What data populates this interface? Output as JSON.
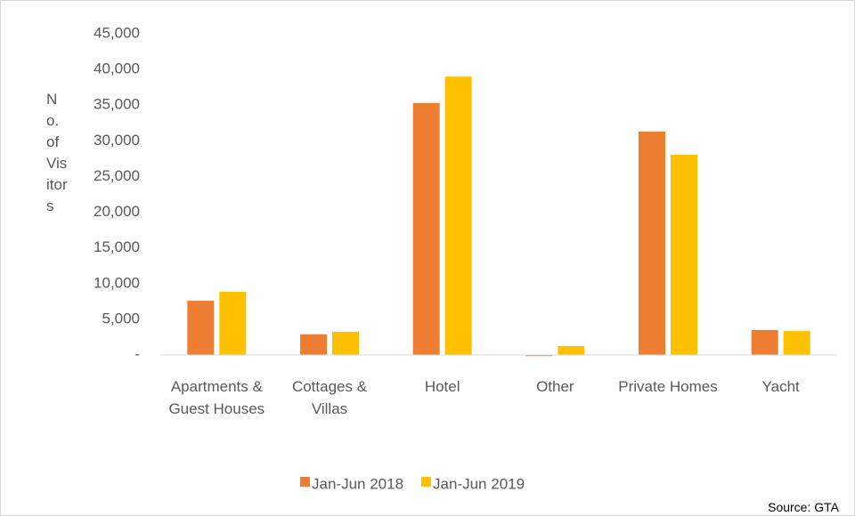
{
  "chart_data": {
    "type": "bar",
    "y_label": "No. of Visitors",
    "source": "Source: GTA",
    "categories": [
      "Apartments & Guest Houses",
      "Cottages & Villas",
      "Hotel",
      "Other",
      "Private Homes",
      "Yacht"
    ],
    "series": [
      {
        "name": "Jan-Jun 2018",
        "color": "#ed7d31",
        "values": [
          7600,
          2900,
          35300,
          -150,
          31300,
          3500
        ]
      },
      {
        "name": "Jan-Jun 2019",
        "color": "#ffc000",
        "values": [
          8850,
          3250,
          39000,
          1250,
          28050,
          3350
        ]
      }
    ],
    "ylim": [
      0,
      45000
    ],
    "yticks": [
      {
        "value": 0,
        "label": "-"
      },
      {
        "value": 5000,
        "label": "5,000"
      },
      {
        "value": 10000,
        "label": "10,000"
      },
      {
        "value": 15000,
        "label": "15,000"
      },
      {
        "value": 20000,
        "label": "20,000"
      },
      {
        "value": 25000,
        "label": "25,000"
      },
      {
        "value": 30000,
        "label": "30,000"
      },
      {
        "value": 35000,
        "label": "35,000"
      },
      {
        "value": 40000,
        "label": "40,000"
      },
      {
        "value": 45000,
        "label": "45,000"
      }
    ],
    "legend": "bottom"
  }
}
